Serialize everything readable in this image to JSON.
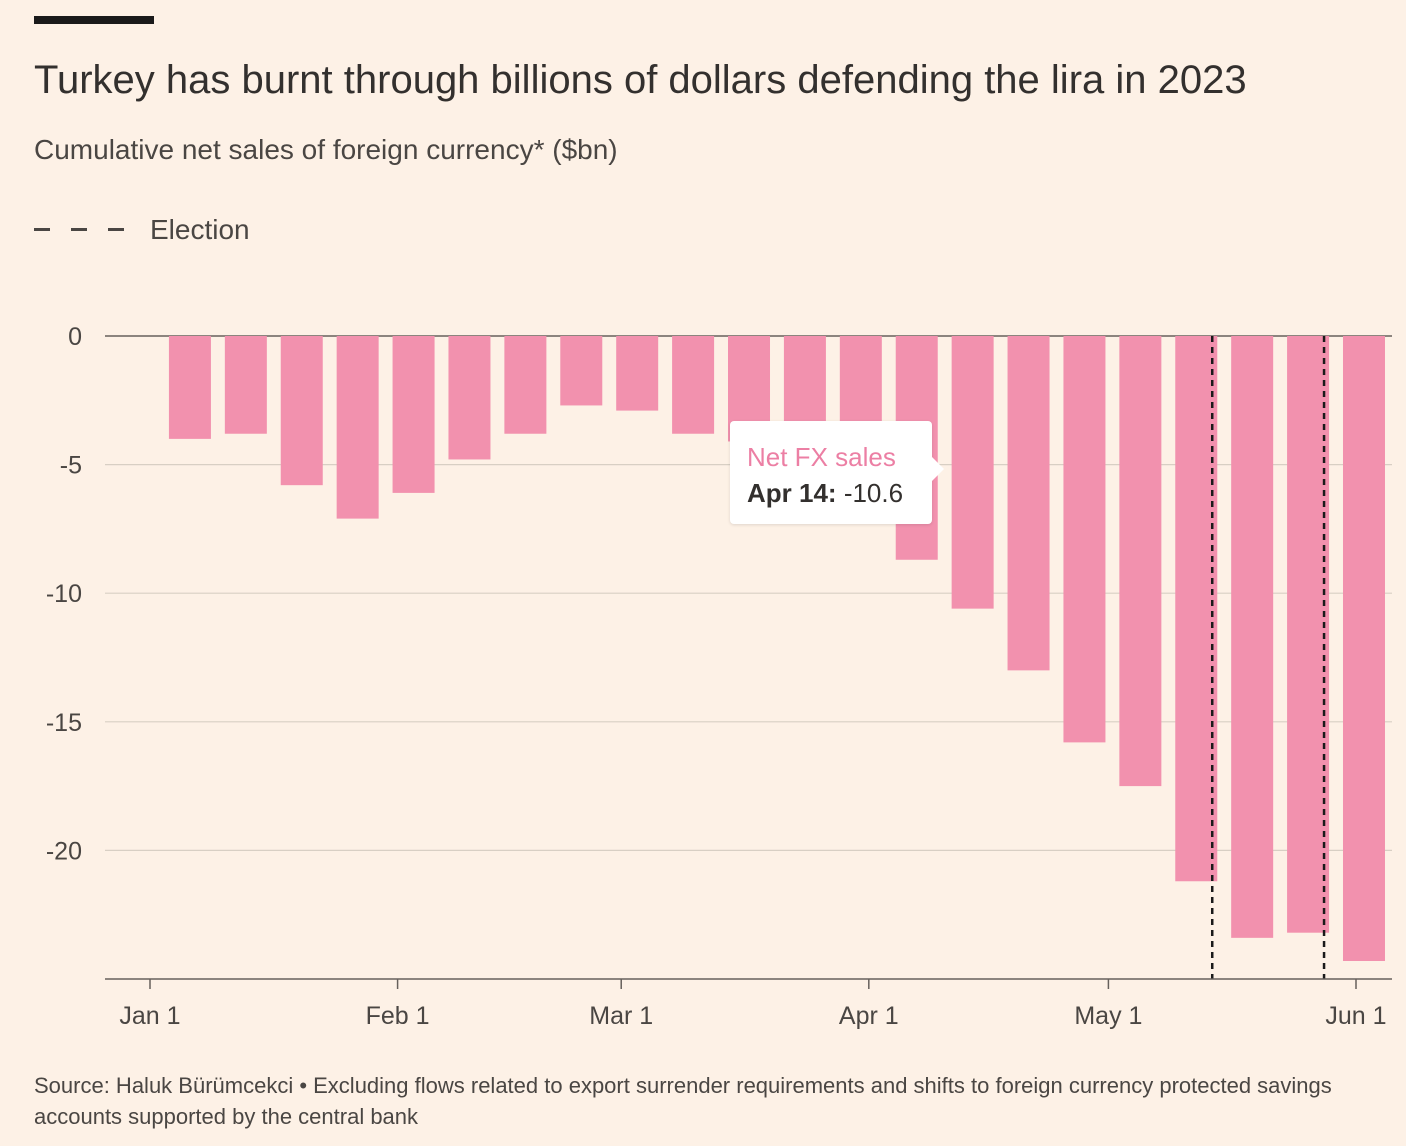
{
  "header": {
    "title": "Turkey has burnt through billions of dollars defending the lira in 2023",
    "subtitle": "Cumulative net sales of foreign currency* ($bn)"
  },
  "legend": {
    "label": "Election"
  },
  "tooltip": {
    "series": "Net FX sales",
    "date": "Apr 14:",
    "value": "-10.6"
  },
  "footnote": "Source: Haluk Bürümcekci • Excluding flows related to export surrender requirements and shifts to foreign currency protected savings accounts supported by the central bank",
  "colors": {
    "bar": "#f291ae",
    "background": "#fdf1e6",
    "grid": "#d8cfc4",
    "text": "#4a4643"
  },
  "chart_data": {
    "type": "bar",
    "x_start": "2023-01-01",
    "x_end": "2023-06-05",
    "x": [
      "2023-01-06",
      "2023-01-13",
      "2023-01-20",
      "2023-01-27",
      "2023-02-03",
      "2023-02-10",
      "2023-02-17",
      "2023-02-24",
      "2023-03-03",
      "2023-03-10",
      "2023-03-17",
      "2023-03-24",
      "2023-03-31",
      "2023-04-07",
      "2023-04-14",
      "2023-04-21",
      "2023-04-28",
      "2023-05-05",
      "2023-05-12",
      "2023-05-19",
      "2023-05-26",
      "2023-06-02"
    ],
    "values": [
      -4.0,
      -3.8,
      -5.8,
      -7.1,
      -6.1,
      -4.8,
      -3.8,
      -2.7,
      -2.9,
      -3.8,
      -4.1,
      -4.1,
      -4.1,
      -8.7,
      -10.6,
      -13.0,
      -15.8,
      -17.5,
      -21.2,
      -23.4,
      -23.2,
      -24.3
    ],
    "xticks": [
      {
        "date": "2023-01-01",
        "label": "Jan 1"
      },
      {
        "date": "2023-02-01",
        "label": "Feb 1"
      },
      {
        "date": "2023-03-01",
        "label": "Mar 1"
      },
      {
        "date": "2023-04-01",
        "label": "Apr 1"
      },
      {
        "date": "2023-05-01",
        "label": "May 1"
      },
      {
        "date": "2023-06-01",
        "label": "Jun 1"
      }
    ],
    "yticks": [
      0,
      -5,
      -10,
      -15,
      -20
    ],
    "ylim": [
      -25,
      0
    ],
    "grid": true,
    "reference_lines": [
      {
        "date": "2023-05-14",
        "label": "Election",
        "style": "dashed"
      },
      {
        "date": "2023-05-28",
        "label": "Election",
        "style": "dashed"
      }
    ]
  }
}
